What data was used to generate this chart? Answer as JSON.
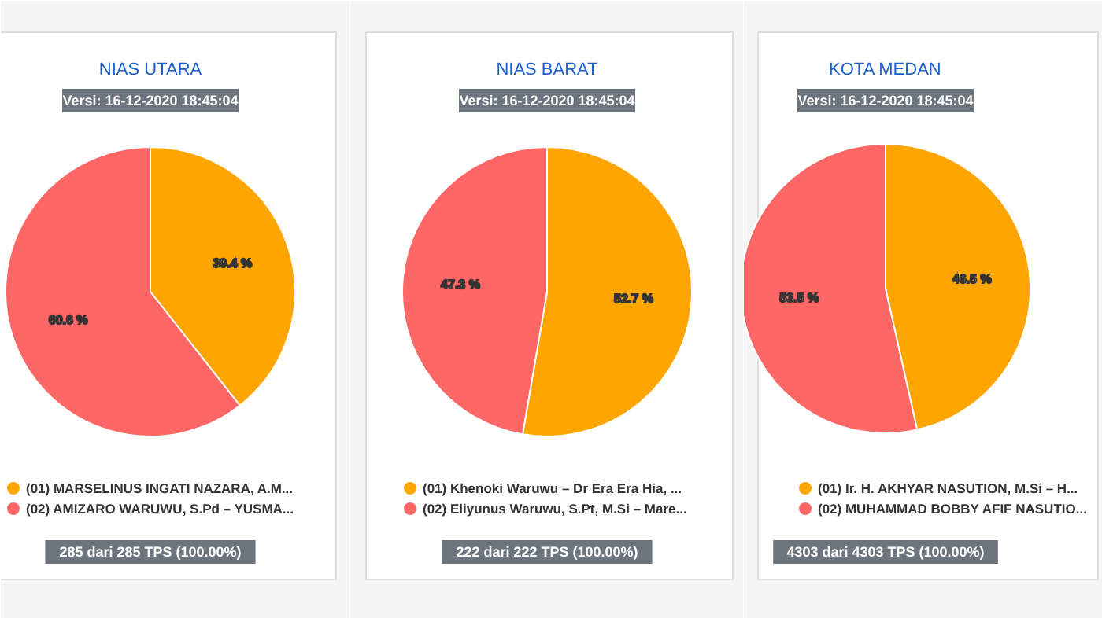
{
  "chart_data": [
    {
      "type": "pie",
      "title": "NIAS UTARA",
      "subtitle": "Versi: 16-12-2020 18:45:04",
      "categories": [
        "(01) MARSELINUS INGATI NAZARA, A.M...",
        "(02) AMIZARO WARUWU, S.Pd – YUSMA..."
      ],
      "values": [
        39.4,
        60.6
      ],
      "colors": [
        "#ffa500",
        "#ff6666"
      ],
      "value_labels": [
        "39.4 %",
        "60.6 %"
      ],
      "legend": "bottom",
      "annotations": [
        "285 dari 285 TPS (100.00%)"
      ]
    },
    {
      "type": "pie",
      "title": "NIAS BARAT",
      "subtitle": "Versi: 16-12-2020 18:45:04",
      "categories": [
        "(01) Khenoki Waruwu – Dr Era Era Hia, ...",
        "(02) Eliyunus Waruwu, S.Pt, M.Si – Mare..."
      ],
      "values": [
        52.7,
        47.3
      ],
      "colors": [
        "#ffa500",
        "#ff6666"
      ],
      "value_labels": [
        "52.7 %",
        "47.3 %"
      ],
      "legend": "bottom",
      "annotations": [
        "222 dari 222 TPS (100.00%)"
      ]
    },
    {
      "type": "pie",
      "title": "KOTA MEDAN",
      "subtitle": "Versi: 16-12-2020 18:45:04",
      "categories": [
        "(01) Ir. H. AKHYAR NASUTION, M.Si – H...",
        "(02) MUHAMMAD BOBBY AFIF NASUTIO..."
      ],
      "values": [
        46.5,
        53.5
      ],
      "colors": [
        "#ffa500",
        "#ff6666"
      ],
      "value_labels": [
        "46.5 %",
        "53.5 %"
      ],
      "legend": "bottom",
      "annotations": [
        "4303 dari 4303 TPS (100.00%)"
      ]
    }
  ]
}
